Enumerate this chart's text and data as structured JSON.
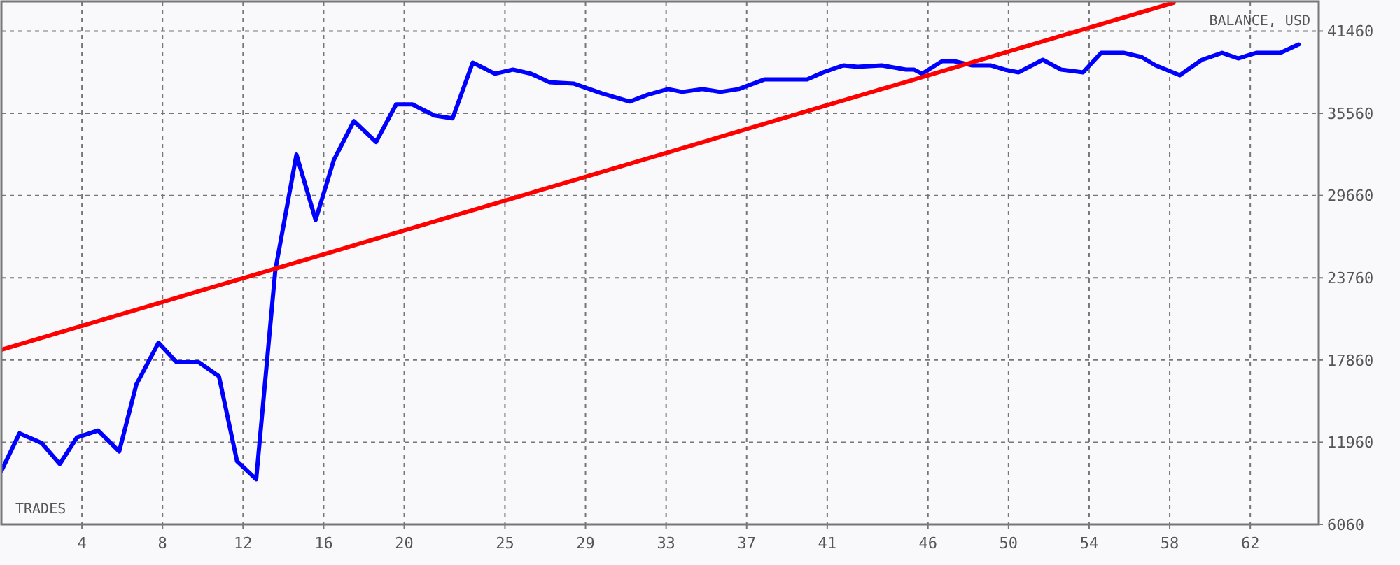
{
  "chart_data": {
    "type": "line",
    "xlabel": "TRADES",
    "ylabel": "BALANCE, USD",
    "xlim": [
      0,
      65.4
    ],
    "ylim": [
      6060,
      43590
    ],
    "xticks": [
      4,
      8,
      12,
      16,
      20,
      25,
      29,
      33,
      37,
      41,
      46,
      50,
      54,
      58,
      62
    ],
    "yticks": [
      6060,
      11960,
      17860,
      23760,
      29660,
      35560,
      41460
    ],
    "grid": true,
    "marker": "none",
    "line_style": "solid",
    "series": [
      {
        "color": "#0000ff",
        "x": [
          0,
          0.9,
          2.0,
          2.9,
          3.75,
          4.8,
          5.85,
          6.7,
          7.8,
          8.7,
          9.8,
          10.8,
          11.7,
          12.65,
          13.6,
          14.65,
          15.6,
          16.5,
          17.5,
          18.6,
          19.6,
          20.4,
          21.5,
          22.4,
          23.4,
          24.5,
          25.4,
          26.3,
          27.2,
          28.4,
          29.8,
          31.2,
          32.1,
          33.1,
          33.8,
          34.8,
          35.7,
          36.6,
          37.9,
          40.0,
          40.8,
          41.8,
          42.5,
          43.7,
          44.9,
          45.3,
          45.7,
          46.7,
          47.3,
          48.2,
          49.1,
          49.8,
          50.5,
          51.7,
          52.6,
          53.7,
          54.6,
          55.7,
          56.6,
          57.3,
          58.5,
          59.6,
          60.6,
          61.4,
          62.3,
          63.5,
          64.4
        ],
        "values": [
          9900,
          12600,
          11900,
          10400,
          12300,
          12800,
          11300,
          16100,
          19100,
          17700,
          17700,
          16700,
          10600,
          9300,
          24300,
          32600,
          27900,
          32200,
          35000,
          33500,
          36200,
          36200,
          35400,
          35200,
          39200,
          38400,
          38700,
          38400,
          37800,
          37700,
          37000,
          36400,
          36900,
          37300,
          37100,
          37300,
          37100,
          37300,
          38000,
          38000,
          38500,
          39000,
          38900,
          39000,
          38700,
          38700,
          38400,
          39300,
          39300,
          39000,
          39000,
          38700,
          38500,
          39400,
          38700,
          38500,
          39900,
          39900,
          39600,
          39000,
          38300,
          39400,
          39900,
          39500,
          39900,
          39900,
          40500
        ]
      },
      {
        "type": "line",
        "color": "#ff0000",
        "x": [
          0,
          58.2
        ],
        "values": [
          18600,
          43500
        ]
      }
    ]
  }
}
